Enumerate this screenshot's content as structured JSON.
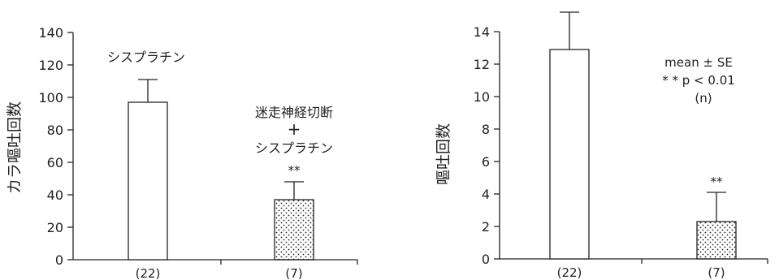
{
  "chart_data": [
    {
      "type": "bar",
      "categories": [
        "(22)",
        "(7)"
      ],
      "values": [
        97,
        37
      ],
      "errors": [
        14,
        11
      ],
      "ylabel": "カラ嘔吐回数",
      "ylim": [
        0,
        140
      ],
      "yticks": [
        0,
        20,
        40,
        60,
        80,
        100,
        120,
        140
      ],
      "grid": false,
      "bar_fills": [
        "white",
        "dotted"
      ],
      "annotations": {
        "bar1": "シスプラチン",
        "bar2_line1": "迷走神経切断",
        "bar2_line2": "+",
        "bar2_line3": "シスプラチン",
        "significance": "**"
      }
    },
    {
      "type": "bar",
      "categories": [
        "(22)",
        "(7)"
      ],
      "values": [
        12.9,
        2.3
      ],
      "errors": [
        2.3,
        1.8
      ],
      "ylabel": "嘔吐回数",
      "ylim": [
        0,
        14
      ],
      "yticks": [
        0,
        2,
        4,
        6,
        8,
        10,
        12,
        14
      ],
      "grid": false,
      "bar_fills": [
        "white",
        "dotted"
      ],
      "annotations": {
        "legend_line1": "mean ± SE",
        "legend_line2": "* * p < 0.01",
        "legend_line3": "(n)",
        "significance": "**"
      }
    }
  ]
}
